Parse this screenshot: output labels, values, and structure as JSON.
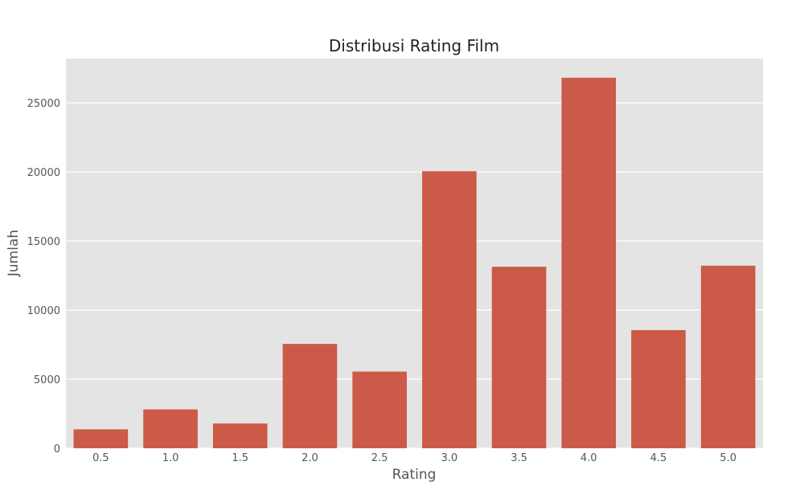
{
  "chart_data": {
    "type": "bar",
    "title": "Distribusi Rating Film",
    "xlabel": "Rating",
    "ylabel": "Jumlah",
    "categories": [
      "0.5",
      "1.0",
      "1.5",
      "2.0",
      "2.5",
      "3.0",
      "3.5",
      "4.0",
      "4.5",
      "5.0"
    ],
    "values": [
      1370,
      2811,
      1791,
      7551,
      5550,
      20047,
      13136,
      26818,
      8551,
      13211
    ],
    "ylim": [
      0,
      28200
    ],
    "yticks": [
      0,
      5000,
      10000,
      15000,
      20000,
      25000
    ],
    "ytick_labels": [
      "0",
      "5000",
      "10000",
      "15000",
      "20000",
      "25000"
    ],
    "grid": true,
    "bar_color": "#cc5a48",
    "background_color": "#e4e4e4",
    "grid_color": "#ffffff"
  }
}
